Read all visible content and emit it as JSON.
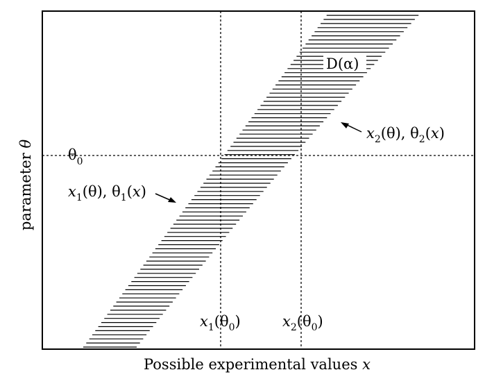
{
  "diagram": {
    "x_axis_label_text": "Possible experimental values ",
    "x_axis_label_var": "x",
    "y_axis_label_text": "parameter ",
    "y_axis_label_var": "θ",
    "theta0": {
      "base": "θ",
      "sub": "0"
    },
    "region": {
      "base": "D(α)"
    },
    "left_boundary": {
      "a": "x",
      "a_sub": "1",
      "b": "(θ), θ",
      "b_sub": "1",
      "c": "(",
      "d": "x",
      "e": ")"
    },
    "right_boundary": {
      "a": "x",
      "a_sub": "2",
      "b": "(θ), θ",
      "b_sub": "2",
      "c": "(",
      "d": "x",
      "e": ")"
    },
    "x1_theta0": {
      "a": "x",
      "a_sub": "1",
      "b": "(θ",
      "b_sub": "0",
      "c": ")"
    },
    "x2_theta0": {
      "a": "x",
      "a_sub": "2",
      "b": "(θ",
      "b_sub": "0",
      "c": ")"
    },
    "colors": {
      "line": "#000000",
      "background": "#ffffff"
    }
  }
}
